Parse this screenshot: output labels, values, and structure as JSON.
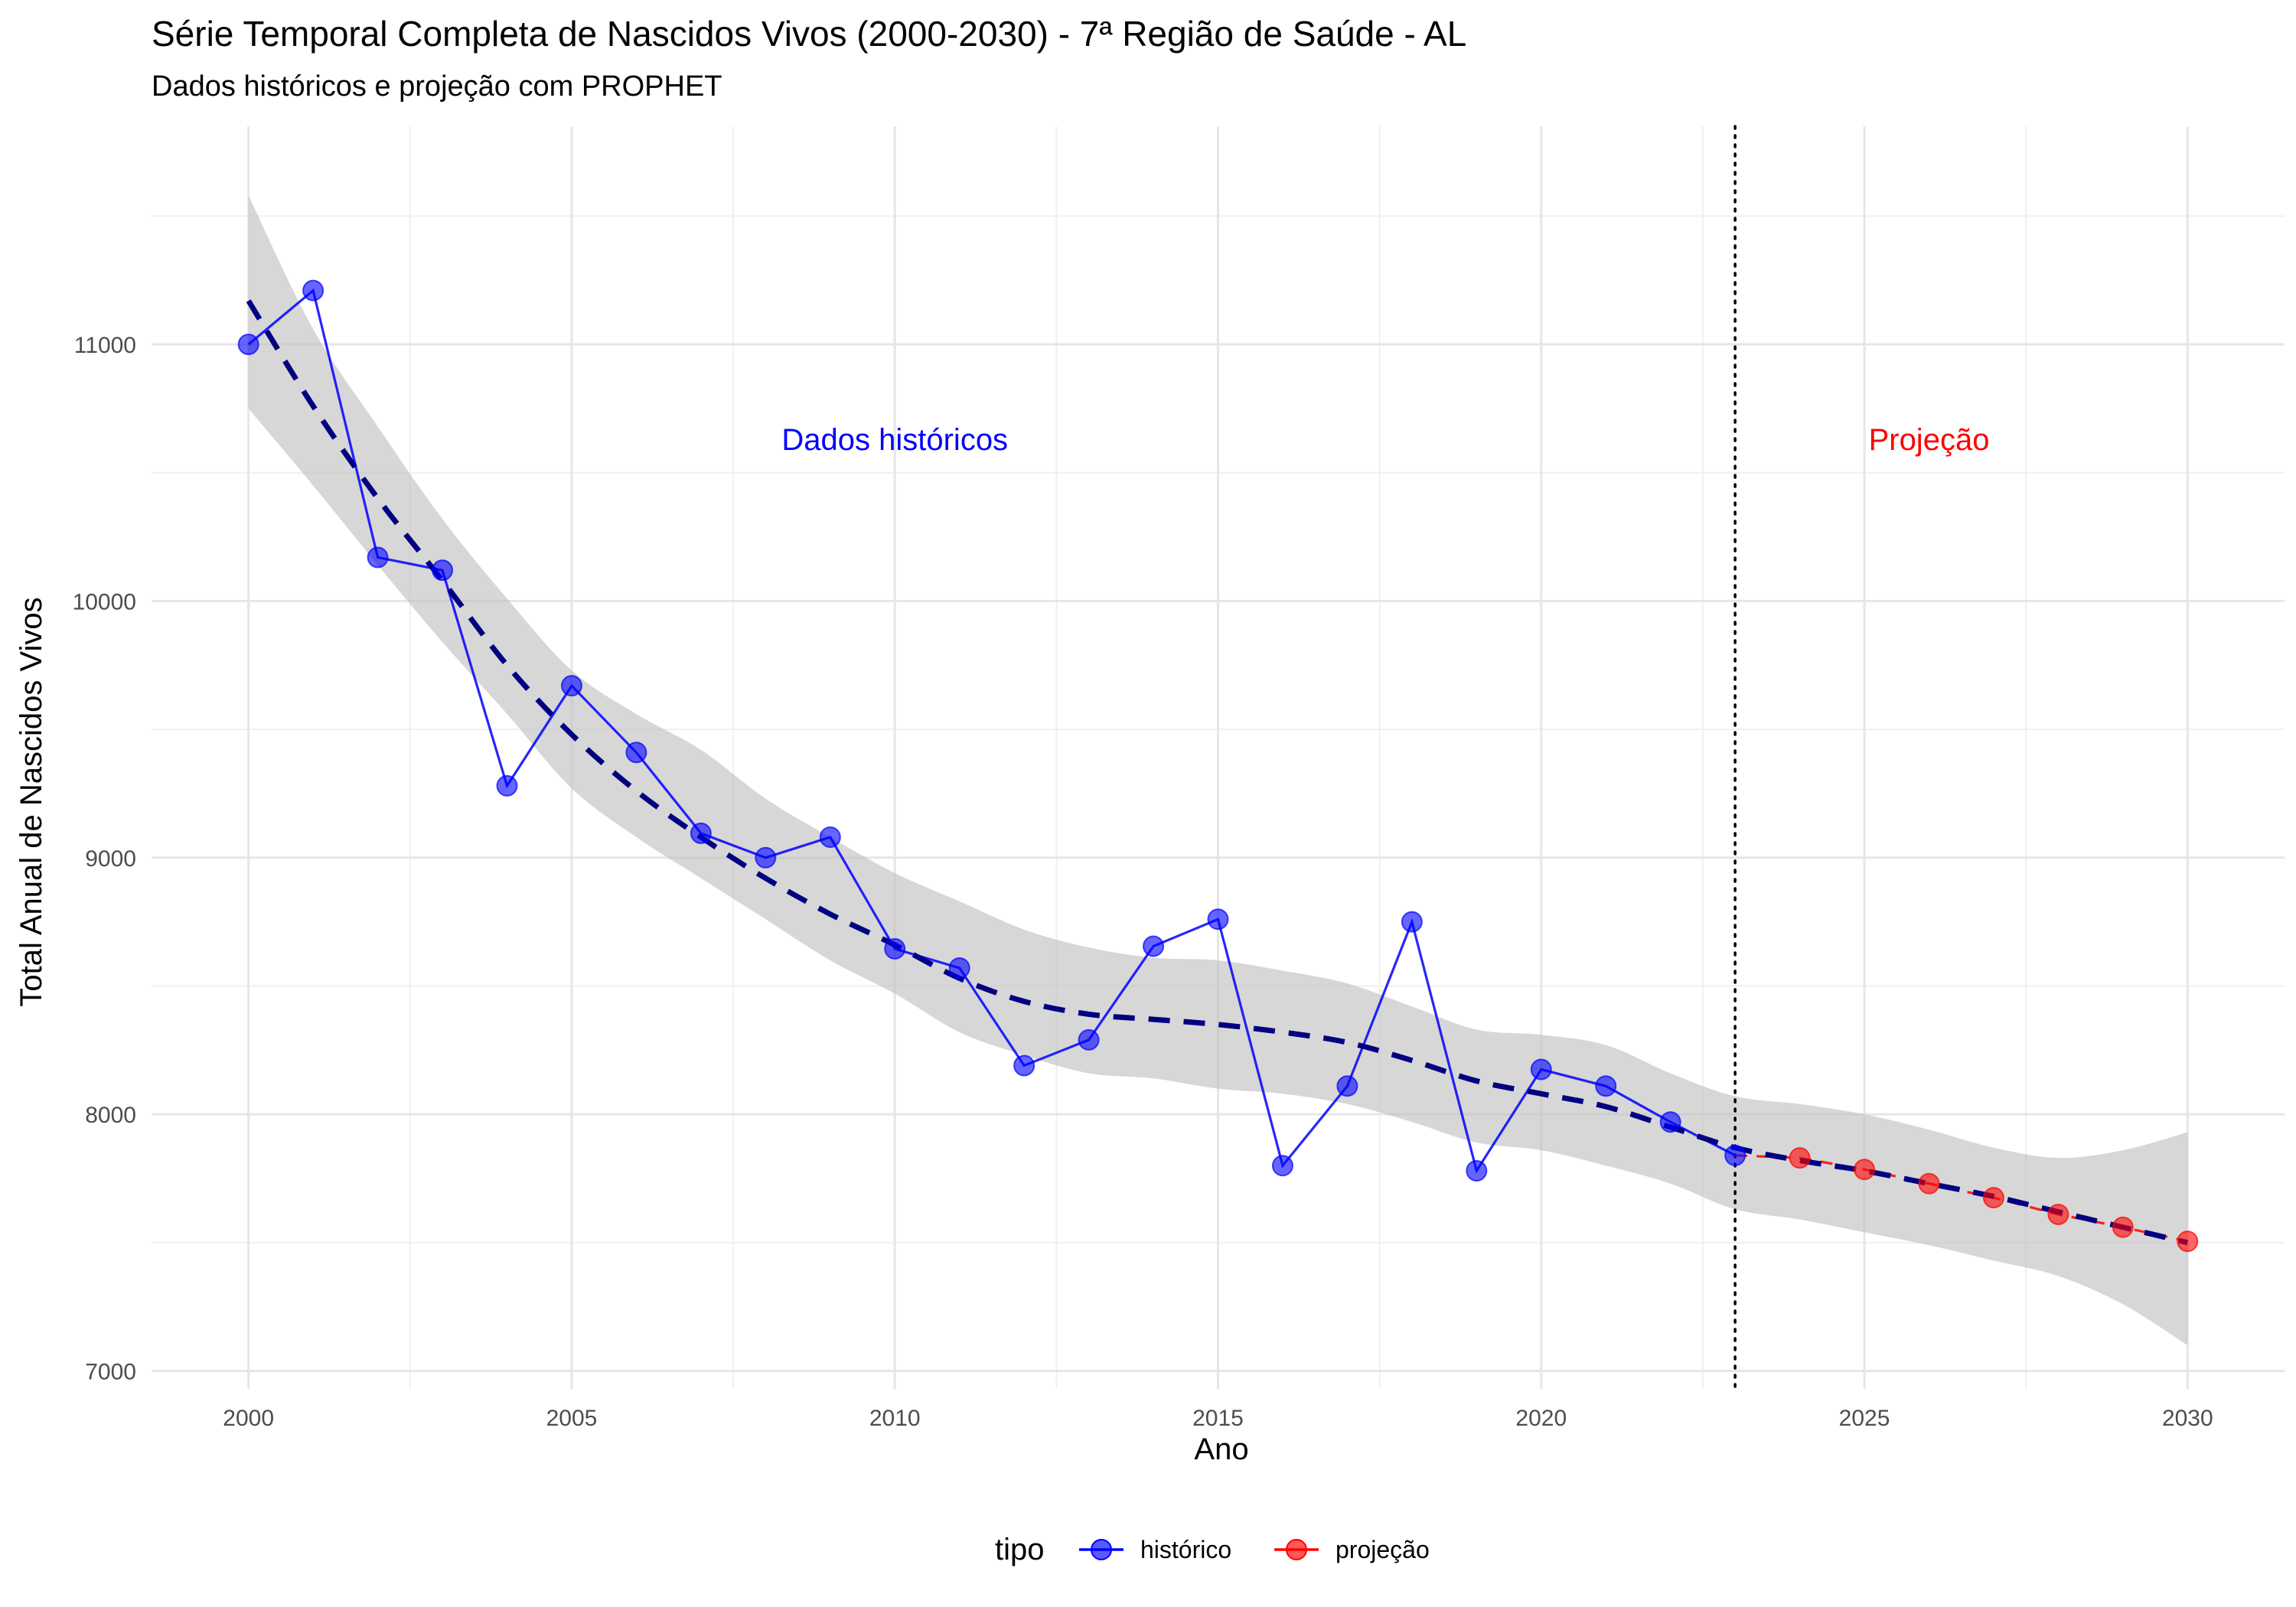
{
  "chart_data": {
    "type": "line",
    "title": "Série Temporal Completa de Nascidos Vivos (2000-2030) -  7ª Região de Saúde - AL",
    "subtitle": "Dados históricos e projeção com PROPHET",
    "xlabel": "Ano",
    "ylabel": "Total Anual de Nascidos Vivos",
    "xlim": [
      1998.5,
      2031.5
    ],
    "ylim": [
      6930,
      11850
    ],
    "x_ticks": [
      "2000",
      "2005",
      "2010",
      "2015",
      "2020",
      "2025",
      "2030"
    ],
    "y_ticks": [
      "7000",
      "8000",
      "9000",
      "10000",
      "11000"
    ],
    "grid": true,
    "legend": {
      "title": "tipo",
      "position": "bottom",
      "items": [
        {
          "label": "histórico",
          "color": "#0000FF"
        },
        {
          "label": "projeção",
          "color": "#FF0000"
        }
      ]
    },
    "annotations": [
      {
        "text": "Dados históricos",
        "x": 2010,
        "y": 10630,
        "color": "#0000FF"
      },
      {
        "text": "Projeção",
        "x": 2026,
        "y": 10630,
        "color": "#FF0000"
      }
    ],
    "vline": {
      "x": 2023,
      "style": "dotted",
      "color": "#000000"
    },
    "series": [
      {
        "name": "histórico",
        "color": "#0000FF",
        "x": [
          2000,
          2001,
          2002,
          2003,
          2004,
          2005,
          2006,
          2007,
          2008,
          2009,
          2010,
          2011,
          2012,
          2013,
          2014,
          2015,
          2016,
          2017,
          2018,
          2019,
          2020,
          2021,
          2022,
          2023
        ],
        "values": [
          11000,
          11210,
          10170,
          10120,
          9280,
          9670,
          9410,
          9095,
          9000,
          9080,
          8645,
          8570,
          8190,
          8290,
          8655,
          8760,
          7800,
          8110,
          8750,
          7780,
          8175,
          8110,
          7970,
          7840
        ]
      },
      {
        "name": "projeção",
        "color": "#FF0000",
        "x": [
          2023,
          2024,
          2025,
          2026,
          2027,
          2028,
          2029,
          2030
        ],
        "values": [
          7840,
          7830,
          7785,
          7730,
          7675,
          7610,
          7560,
          7505
        ]
      }
    ],
    "trend": {
      "color": "#000080",
      "style": "dashed",
      "x": [
        2000,
        2001,
        2002,
        2003,
        2004,
        2005,
        2006,
        2007,
        2008,
        2009,
        2010,
        2011,
        2012,
        2013,
        2014,
        2015,
        2016,
        2017,
        2018,
        2019,
        2020,
        2021,
        2022,
        2023,
        2024,
        2025,
        2026,
        2027,
        2028,
        2029,
        2030
      ],
      "values": [
        11170,
        10760,
        10400,
        10080,
        9750,
        9480,
        9260,
        9080,
        8920,
        8780,
        8660,
        8530,
        8440,
        8390,
        8370,
        8350,
        8320,
        8280,
        8210,
        8130,
        8080,
        8030,
        7950,
        7870,
        7820,
        7780,
        7730,
        7680,
        7620,
        7560,
        7500
      ]
    },
    "band": {
      "color": "#bebebe",
      "x": [
        2000,
        2001,
        2002,
        2003,
        2004,
        2005,
        2006,
        2007,
        2008,
        2009,
        2010,
        2011,
        2012,
        2013,
        2014,
        2015,
        2016,
        2017,
        2018,
        2019,
        2020,
        2021,
        2022,
        2023,
        2024,
        2025,
        2026,
        2027,
        2028,
        2029,
        2030
      ],
      "upper": [
        11580,
        11060,
        10680,
        10320,
        10010,
        9730,
        9560,
        9420,
        9230,
        9080,
        8940,
        8830,
        8720,
        8650,
        8610,
        8600,
        8560,
        8510,
        8420,
        8330,
        8310,
        8270,
        8160,
        8070,
        8040,
        8000,
        7940,
        7870,
        7830,
        7860,
        7930
      ],
      "lower": [
        10750,
        10450,
        10140,
        9840,
        9560,
        9270,
        9080,
        8920,
        8760,
        8600,
        8470,
        8320,
        8230,
        8160,
        8140,
        8100,
        8080,
        8040,
        7970,
        7890,
        7860,
        7800,
        7730,
        7630,
        7590,
        7540,
        7490,
        7430,
        7370,
        7260,
        7100
      ]
    }
  }
}
